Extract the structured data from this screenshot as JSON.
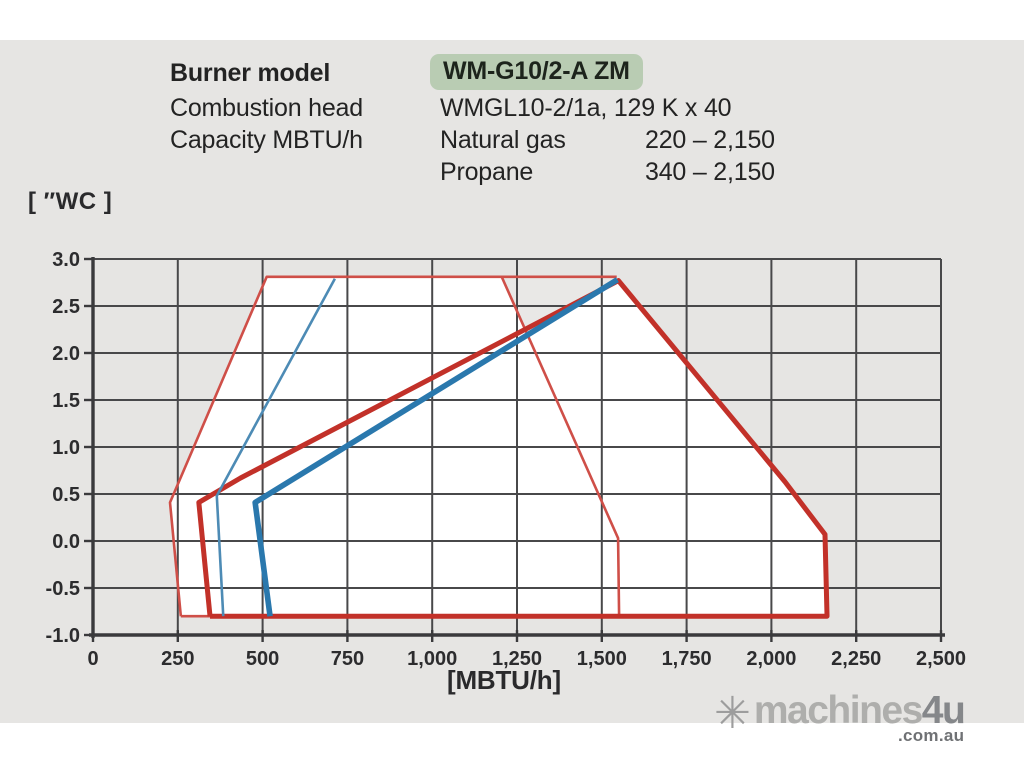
{
  "page": {
    "band_color": "#e6e5e3"
  },
  "header": {
    "highlight_color": "#b9ccb3",
    "rows": [
      {
        "label": "Burner model",
        "value": "WM-G10/2-A ZM",
        "range": ""
      },
      {
        "label": "Combustion head",
        "value": "WMGL10-2/1a, 129 K x 40",
        "range": ""
      },
      {
        "label": "Capacity MBTU/h",
        "value": "Natural gas",
        "range": "220 – 2,150"
      },
      {
        "label": "",
        "value": "Propane",
        "range": "340 – 2,150"
      }
    ]
  },
  "chart_data": {
    "type": "line",
    "xlabel": "[MBTU/h]",
    "ylabel": "[ ″WC ]",
    "xlim": [
      0,
      2500
    ],
    "ylim": [
      -1.0,
      3.0
    ],
    "grid": "on",
    "grid_color": "#48484a",
    "axis_color": "#3a3a3c",
    "tick_text_color": "#2c2c2e",
    "x_tick_values": [
      0,
      250,
      500,
      750,
      1000,
      1250,
      1500,
      1750,
      2000,
      2250,
      2500
    ],
    "x_ticks": [
      "0",
      "250",
      "500",
      "750",
      "1,000",
      "1,250",
      "1,500",
      "1,750",
      "2,000",
      "2,250",
      "2,500"
    ],
    "y_tick_values": [
      3.0,
      2.5,
      2.0,
      1.5,
      1.0,
      0.5,
      0.0,
      -0.5,
      -1.0
    ],
    "y_ticks": [
      "3.0",
      "2.5",
      "2.0",
      "1.5",
      "1.0",
      "0.5",
      "0.0",
      "-0.5",
      "-1.0"
    ],
    "regions": [
      {
        "name": "working-field-white",
        "fill": "#ffffff",
        "points": [
          [
            227,
            0.41
          ],
          [
            512,
            2.81
          ],
          [
            1544,
            2.81
          ],
          [
            1549,
            2.77
          ],
          [
            2040,
            0.63
          ],
          [
            2158,
            0.07
          ],
          [
            2164,
            -0.8
          ],
          [
            259,
            -0.8
          ]
        ]
      },
      {
        "name": "upper-right-wedge",
        "fill": "#e9e8e6",
        "points": [
          [
            1205,
            2.81
          ],
          [
            1546,
            2.8
          ],
          [
            1281,
            2.19
          ]
        ]
      }
    ],
    "series": [
      {
        "name": "natural-gas-envelope-thin-red",
        "color": "#cf4f48",
        "width": 2.6,
        "paths": [
          [
            [
              259,
              -0.8
            ],
            [
              227,
              0.41
            ],
            [
              512,
              2.81
            ],
            [
              1544,
              2.81
            ]
          ],
          [
            [
              1205,
              2.81
            ],
            [
              1548,
              0.03
            ],
            [
              1551,
              -0.8
            ]
          ],
          [
            [
              259,
              -0.8
            ],
            [
              1551,
              -0.8
            ]
          ]
        ]
      },
      {
        "name": "working-field-thick-red",
        "color": "#c23129",
        "width": 5.0,
        "paths": [
          [
            [
              345,
              -0.8
            ],
            [
              312,
              0.41
            ],
            [
              435,
              0.67
            ],
            [
              1549,
              2.77
            ],
            [
              2040,
              0.63
            ],
            [
              2158,
              0.07
            ],
            [
              2164,
              -0.8
            ],
            [
              345,
              -0.8
            ]
          ]
        ]
      },
      {
        "name": "propane-min-thin-blue",
        "color": "#4d8bb5",
        "width": 2.6,
        "paths": [
          [
            [
              384,
              -0.8
            ],
            [
              365,
              0.48
            ],
            [
              713,
              2.79
            ]
          ]
        ]
      },
      {
        "name": "propane-thick-blue",
        "color": "#2a78ad",
        "width": 5.6,
        "paths": [
          [
            [
              522,
              -0.8
            ],
            [
              478,
              0.41
            ],
            [
              1546,
              2.78
            ]
          ]
        ]
      }
    ]
  },
  "watermark": {
    "icon": "✳",
    "brand": "machines",
    "brand_suffix": "4u",
    "domain": ".com.au"
  }
}
